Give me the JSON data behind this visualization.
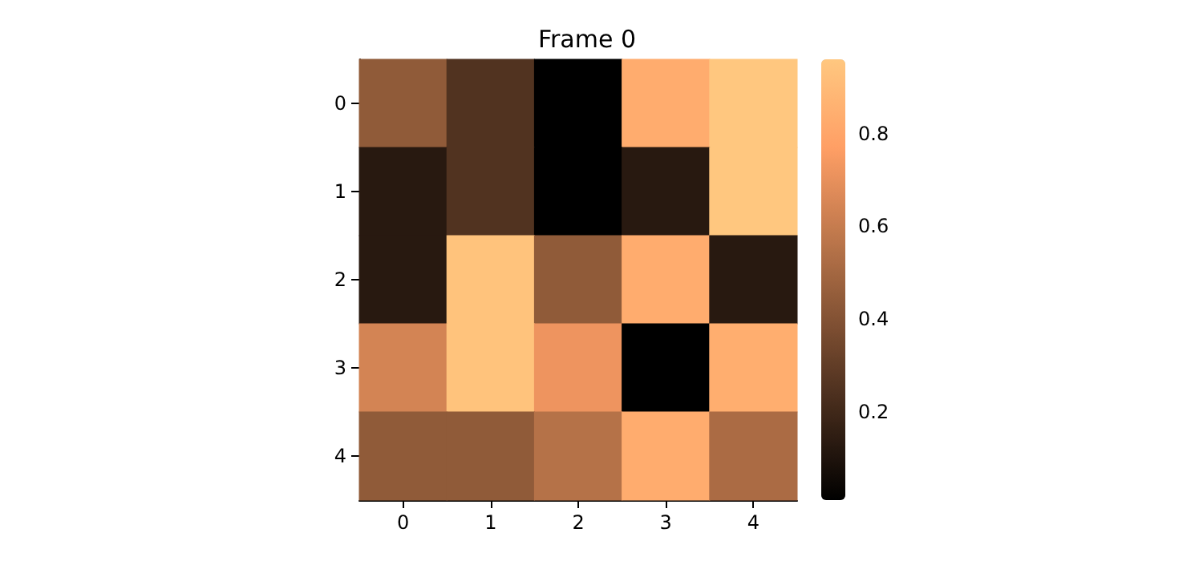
{
  "chart_data": {
    "type": "heatmap",
    "title": "Frame 0",
    "categories": [
      "0",
      "1",
      "2",
      "3",
      "4"
    ],
    "y_categories": [
      "0",
      "1",
      "2",
      "3",
      "4"
    ],
    "cells": [
      [
        0.44,
        0.25,
        0.01,
        0.83,
        0.96
      ],
      [
        0.13,
        0.25,
        0.01,
        0.13,
        0.96
      ],
      [
        0.13,
        0.94,
        0.44,
        0.83,
        0.13
      ],
      [
        0.64,
        0.94,
        0.72,
        0.01,
        0.84
      ],
      [
        0.44,
        0.44,
        0.55,
        0.83,
        0.52
      ]
    ],
    "clim": [
      0.01,
      0.96
    ],
    "cticks": [
      0.2,
      0.4,
      0.6,
      0.8
    ]
  }
}
